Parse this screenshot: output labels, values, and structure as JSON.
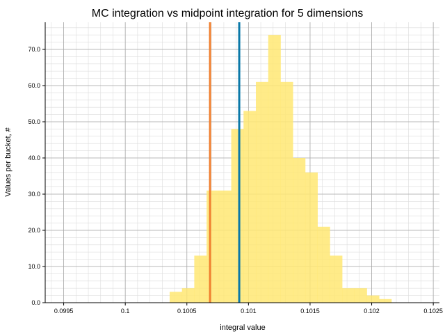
{
  "chart_data": {
    "type": "bar",
    "title": "MC integration vs midpoint integration for 5 dimensions",
    "xlabel": "integral value",
    "ylabel": "Values per bucket, #",
    "xlim": [
      0.09935,
      0.10255
    ],
    "ylim": [
      0,
      77.5
    ],
    "xticks": [
      0.0995,
      0.1,
      0.1005,
      0.101,
      0.1015,
      0.102,
      0.1025
    ],
    "xtick_labels": [
      "0.0995",
      "0.1",
      "0.1005",
      "0.101",
      "0.1015",
      "0.102",
      "0.1025"
    ],
    "yticks": [
      0,
      10,
      20,
      30,
      40,
      50,
      60,
      70
    ],
    "ytick_labels": [
      "0.0",
      "10.0",
      "20.0",
      "30.0",
      "40.0",
      "50.0",
      "60.0",
      "70.0"
    ],
    "grid": true,
    "bins": {
      "edges": [
        0.09936,
        0.09946,
        0.09956,
        0.09966,
        0.09976,
        0.09986,
        0.09996,
        0.10006,
        0.10016,
        0.10026,
        0.10036,
        0.10046,
        0.10056,
        0.10066,
        0.10076,
        0.10086,
        0.10096,
        0.10106,
        0.10116,
        0.10126,
        0.10136,
        0.10146,
        0.10156,
        0.10166,
        0.10176,
        0.10186,
        0.10196,
        0.10206,
        0.10216,
        0.10226,
        0.10236,
        0.10246
      ],
      "counts": [
        0,
        0,
        0,
        0,
        0,
        0,
        0,
        0,
        0,
        0,
        3,
        4,
        13,
        31,
        31,
        48,
        53,
        61,
        74,
        61,
        40,
        36,
        21,
        13,
        4,
        4,
        2,
        1,
        0,
        0,
        0
      ],
      "color": "#ffe873",
      "opacity": 0.85
    },
    "vlines": [
      {
        "x": 0.100688,
        "color": "#f08030"
      },
      {
        "x": 0.100925,
        "color": "#0a78a8"
      }
    ]
  }
}
